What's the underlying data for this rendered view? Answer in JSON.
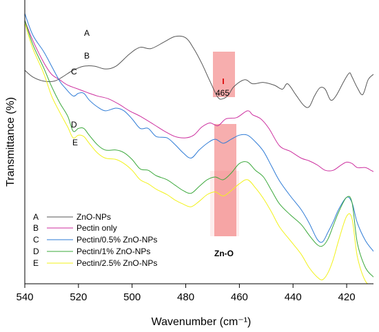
{
  "chart_data": {
    "type": "line",
    "xlabel": "Wavenumber (cm⁻¹)",
    "ylabel": "Transmittance (%)",
    "xlim": [
      540,
      410
    ],
    "x_reversed": true,
    "y_ticks_shown": false,
    "grid": false,
    "legend_position": "bottom-left",
    "x_ticks": [
      540,
      520,
      500,
      480,
      460,
      440,
      420
    ],
    "series": [
      {
        "letter": "A",
        "name": "ZnO-NPs",
        "color": "#555555",
        "points": [
          [
            540,
            0.98
          ],
          [
            537,
            0.93
          ],
          [
            533,
            0.9
          ],
          [
            529,
            0.9
          ],
          [
            526,
            0.93
          ],
          [
            522,
            0.98
          ],
          [
            518,
            1.01
          ],
          [
            514,
            1.01
          ],
          [
            510,
            0.99
          ],
          [
            506,
            1.01
          ],
          [
            501,
            1.1
          ],
          [
            497,
            1.15
          ],
          [
            493,
            1.14
          ],
          [
            488,
            1.19
          ],
          [
            484,
            1.23
          ],
          [
            480,
            1.22
          ],
          [
            477,
            1.14
          ],
          [
            474,
            1.03
          ],
          [
            471,
            0.9
          ],
          [
            468,
            0.78
          ],
          [
            466,
            0.77
          ],
          [
            464,
            0.8
          ],
          [
            462,
            0.86
          ],
          [
            458,
            0.91
          ],
          [
            455,
            0.88
          ],
          [
            451,
            0.89
          ],
          [
            447,
            0.87
          ],
          [
            444,
            0.84
          ],
          [
            442,
            0.88
          ],
          [
            439,
            0.8
          ],
          [
            436,
            0.72
          ],
          [
            434,
            0.71
          ],
          [
            432,
            0.79
          ],
          [
            430,
            0.85
          ],
          [
            428,
            0.84
          ],
          [
            426,
            0.76
          ],
          [
            424,
            0.79
          ],
          [
            421,
            0.9
          ],
          [
            419,
            0.96
          ],
          [
            418,
            0.93
          ],
          [
            416,
            0.85
          ],
          [
            414,
            0.8
          ],
          [
            412,
            0.91
          ],
          [
            410,
            0.95
          ]
        ]
      },
      {
        "letter": "B",
        "name": "Pectin only",
        "color": "#cc2e9e",
        "points": [
          [
            540,
            1.35
          ],
          [
            537,
            1.2
          ],
          [
            533,
            1.04
          ],
          [
            530,
            0.95
          ],
          [
            527,
            0.91
          ],
          [
            524,
            0.87
          ],
          [
            520,
            0.84
          ],
          [
            516,
            0.81
          ],
          [
            513,
            0.79
          ],
          [
            509,
            0.77
          ],
          [
            505,
            0.73
          ],
          [
            501,
            0.68
          ],
          [
            497,
            0.64
          ],
          [
            492,
            0.58
          ],
          [
            488,
            0.53
          ],
          [
            484,
            0.49
          ],
          [
            480,
            0.48
          ],
          [
            477,
            0.5
          ],
          [
            474,
            0.56
          ],
          [
            471,
            0.59
          ],
          [
            468,
            0.57
          ],
          [
            465,
            0.62
          ],
          [
            461,
            0.63
          ],
          [
            457,
            0.68
          ],
          [
            455,
            0.65
          ],
          [
            452,
            0.62
          ],
          [
            449,
            0.55
          ],
          [
            445,
            0.42
          ],
          [
            441,
            0.38
          ],
          [
            437,
            0.33
          ],
          [
            434,
            0.31
          ],
          [
            431,
            0.28
          ],
          [
            428,
            0.24
          ],
          [
            425,
            0.24
          ],
          [
            422,
            0.28
          ],
          [
            420,
            0.3
          ],
          [
            418,
            0.29
          ],
          [
            416,
            0.26
          ],
          [
            413,
            0.26
          ],
          [
            411,
            0.24
          ],
          [
            410,
            0.23
          ]
        ]
      },
      {
        "letter": "C",
        "name": "Pectin/0.5% ZnO-NPs",
        "color": "#2e7bd6",
        "points": [
          [
            540,
            1.4
          ],
          [
            537,
            1.24
          ],
          [
            533,
            1.12
          ],
          [
            530,
            1.01
          ],
          [
            527,
            0.9
          ],
          [
            525,
            0.85
          ],
          [
            522,
            0.79
          ],
          [
            520,
            0.81
          ],
          [
            518,
            0.81
          ],
          [
            516,
            0.76
          ],
          [
            513,
            0.71
          ],
          [
            510,
            0.68
          ],
          [
            506,
            0.7
          ],
          [
            503,
            0.68
          ],
          [
            500,
            0.62
          ],
          [
            497,
            0.55
          ],
          [
            494,
            0.55
          ],
          [
            491,
            0.49
          ],
          [
            487,
            0.48
          ],
          [
            484,
            0.43
          ],
          [
            481,
            0.37
          ],
          [
            478,
            0.33
          ],
          [
            475,
            0.39
          ],
          [
            472,
            0.44
          ],
          [
            469,
            0.47
          ],
          [
            466,
            0.44
          ],
          [
            463,
            0.47
          ],
          [
            460,
            0.5
          ],
          [
            457,
            0.5
          ],
          [
            454,
            0.45
          ],
          [
            451,
            0.38
          ],
          [
            448,
            0.27
          ],
          [
            445,
            0.16
          ],
          [
            441,
            0.05
          ],
          [
            437,
            -0.05
          ],
          [
            434,
            -0.15
          ],
          [
            431,
            -0.27
          ],
          [
            429,
            -0.29
          ],
          [
            427,
            -0.22
          ],
          [
            425,
            -0.14
          ],
          [
            423,
            -0.05
          ],
          [
            420,
            0.04
          ],
          [
            418,
            0.0
          ],
          [
            416,
            -0.15
          ],
          [
            413,
            -0.28
          ],
          [
            410,
            -0.36
          ]
        ]
      },
      {
        "letter": "D",
        "name": "Pectin/1% ZnO-NPs",
        "color": "#3aa83a",
        "points": [
          [
            540,
            1.35
          ],
          [
            537,
            1.17
          ],
          [
            533,
            1.0
          ],
          [
            530,
            0.86
          ],
          [
            527,
            0.74
          ],
          [
            524,
            0.64
          ],
          [
            522,
            0.53
          ],
          [
            520,
            0.55
          ],
          [
            518,
            0.55
          ],
          [
            516,
            0.5
          ],
          [
            513,
            0.43
          ],
          [
            510,
            0.39
          ],
          [
            506,
            0.39
          ],
          [
            503,
            0.37
          ],
          [
            500,
            0.32
          ],
          [
            497,
            0.25
          ],
          [
            494,
            0.24
          ],
          [
            491,
            0.2
          ],
          [
            487,
            0.17
          ],
          [
            484,
            0.13
          ],
          [
            481,
            0.09
          ],
          [
            478,
            0.07
          ],
          [
            475,
            0.12
          ],
          [
            472,
            0.17
          ],
          [
            469,
            0.19
          ],
          [
            466,
            0.17
          ],
          [
            463,
            0.22
          ],
          [
            460,
            0.29
          ],
          [
            457,
            0.3
          ],
          [
            454,
            0.24
          ],
          [
            451,
            0.19
          ],
          [
            448,
            0.09
          ],
          [
            445,
            -0.01
          ],
          [
            441,
            -0.09
          ],
          [
            437,
            -0.16
          ],
          [
            434,
            -0.24
          ],
          [
            431,
            -0.31
          ],
          [
            429,
            -0.32
          ],
          [
            427,
            -0.27
          ],
          [
            425,
            -0.17
          ],
          [
            423,
            -0.07
          ],
          [
            420,
            0.04
          ],
          [
            418,
            0.0
          ],
          [
            416,
            -0.3
          ],
          [
            413,
            -0.48
          ],
          [
            410,
            -0.55
          ]
        ]
      },
      {
        "letter": "E",
        "name": "Pectin/2.5% ZnO-NPs",
        "color": "#f2f21a",
        "points": [
          [
            540,
            1.33
          ],
          [
            537,
            1.14
          ],
          [
            533,
            0.96
          ],
          [
            530,
            0.79
          ],
          [
            527,
            0.67
          ],
          [
            524,
            0.56
          ],
          [
            522,
            0.48
          ],
          [
            520,
            0.5
          ],
          [
            518,
            0.49
          ],
          [
            516,
            0.44
          ],
          [
            513,
            0.37
          ],
          [
            510,
            0.33
          ],
          [
            506,
            0.32
          ],
          [
            503,
            0.29
          ],
          [
            500,
            0.24
          ],
          [
            497,
            0.17
          ],
          [
            494,
            0.14
          ],
          [
            491,
            0.1
          ],
          [
            487,
            0.06
          ],
          [
            484,
            0.02
          ],
          [
            481,
            -0.01
          ],
          [
            478,
            -0.03
          ],
          [
            475,
            0.01
          ],
          [
            472,
            0.06
          ],
          [
            469,
            0.08
          ],
          [
            466,
            0.05
          ],
          [
            463,
            0.09
          ],
          [
            460,
            0.14
          ],
          [
            457,
            0.17
          ],
          [
            454,
            0.11
          ],
          [
            451,
            0.03
          ],
          [
            448,
            -0.07
          ],
          [
            445,
            -0.18
          ],
          [
            441,
            -0.28
          ],
          [
            437,
            -0.38
          ],
          [
            434,
            -0.48
          ],
          [
            431,
            -0.55
          ],
          [
            429,
            -0.57
          ],
          [
            427,
            -0.52
          ],
          [
            425,
            -0.42
          ],
          [
            423,
            -0.28
          ],
          [
            420,
            -0.1
          ],
          [
            418,
            -0.12
          ],
          [
            416,
            -0.4
          ],
          [
            413,
            -0.58
          ],
          [
            410,
            -0.62
          ]
        ]
      }
    ],
    "annotations": {
      "peak_label": "465",
      "bond_label": "Zn-O"
    }
  },
  "highlight_color": "#f06b6b"
}
